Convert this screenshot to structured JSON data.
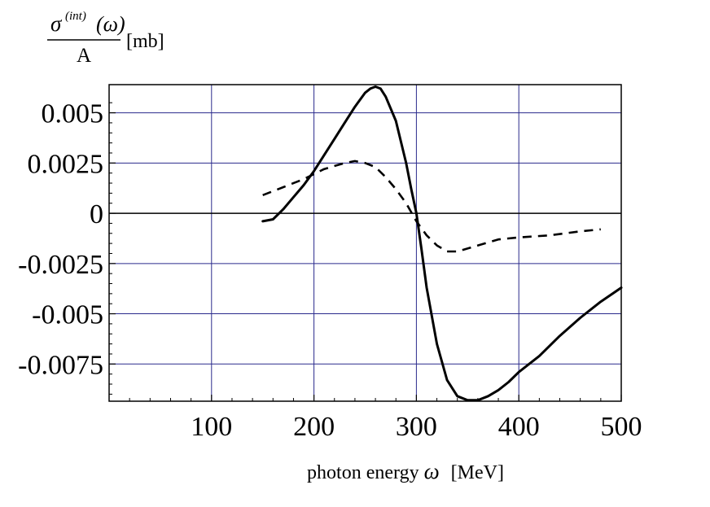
{
  "chart_data": {
    "type": "line",
    "title": "",
    "ylabel": {
      "numerator_symbol": "σ",
      "superscript": "(int)",
      "argument": "(ω)",
      "denominator": "A",
      "unit": "[mb]"
    },
    "xlabel": {
      "prefix": "photon energy ",
      "symbol": "ω",
      "unit": "[MeV]"
    },
    "xlim": [
      0,
      500
    ],
    "ylim": [
      -0.00935,
      0.0064
    ],
    "xticks": [
      100,
      200,
      300,
      400,
      500
    ],
    "xtick_labels": [
      "100",
      "200",
      "300",
      "400",
      "500"
    ],
    "yticks": [
      0.005,
      0.0025,
      0,
      -0.0025,
      -0.005,
      -0.0075
    ],
    "ytick_labels": [
      "0.005",
      "0.0025",
      "0",
      "-0.0025",
      "-0.005",
      "-0.0075"
    ],
    "grid": true,
    "grid_color": "#2a2a8c",
    "zero_line_color": "#000000",
    "series": [
      {
        "name": "solid",
        "style": "solid",
        "color": "#000000",
        "x": [
          150,
          160,
          170,
          180,
          190,
          200,
          210,
          220,
          230,
          240,
          250,
          255,
          260,
          265,
          270,
          280,
          290,
          295,
          300,
          305,
          310,
          320,
          330,
          340,
          350,
          360,
          370,
          380,
          390,
          400,
          420,
          440,
          460,
          480,
          500
        ],
        "y": [
          -0.0004,
          -0.0003,
          0.0002,
          0.0008,
          0.0014,
          0.0021,
          0.0029,
          0.0037,
          0.0045,
          0.0053,
          0.006,
          0.0062,
          0.0063,
          0.0062,
          0.0058,
          0.0046,
          0.0025,
          0.0012,
          0.0,
          -0.0018,
          -0.0037,
          -0.0065,
          -0.0083,
          -0.0091,
          -0.0093,
          -0.0093,
          -0.0091,
          -0.0088,
          -0.0084,
          -0.0079,
          -0.0071,
          -0.0061,
          -0.0052,
          -0.0044,
          -0.0037
        ]
      },
      {
        "name": "dashed",
        "style": "dashed",
        "color": "#000000",
        "x": [
          150,
          170,
          190,
          210,
          230,
          240,
          250,
          260,
          270,
          280,
          290,
          300,
          310,
          320,
          330,
          340,
          360,
          380,
          400,
          430,
          460,
          480
        ],
        "y": [
          0.0009,
          0.0013,
          0.0017,
          0.0022,
          0.0025,
          0.0026,
          0.0025,
          0.0023,
          0.0018,
          0.0012,
          0.0005,
          -0.0004,
          -0.0011,
          -0.0016,
          -0.0019,
          -0.0019,
          -0.0016,
          -0.0013,
          -0.0012,
          -0.0011,
          -0.0009,
          -0.0008
        ]
      }
    ]
  }
}
